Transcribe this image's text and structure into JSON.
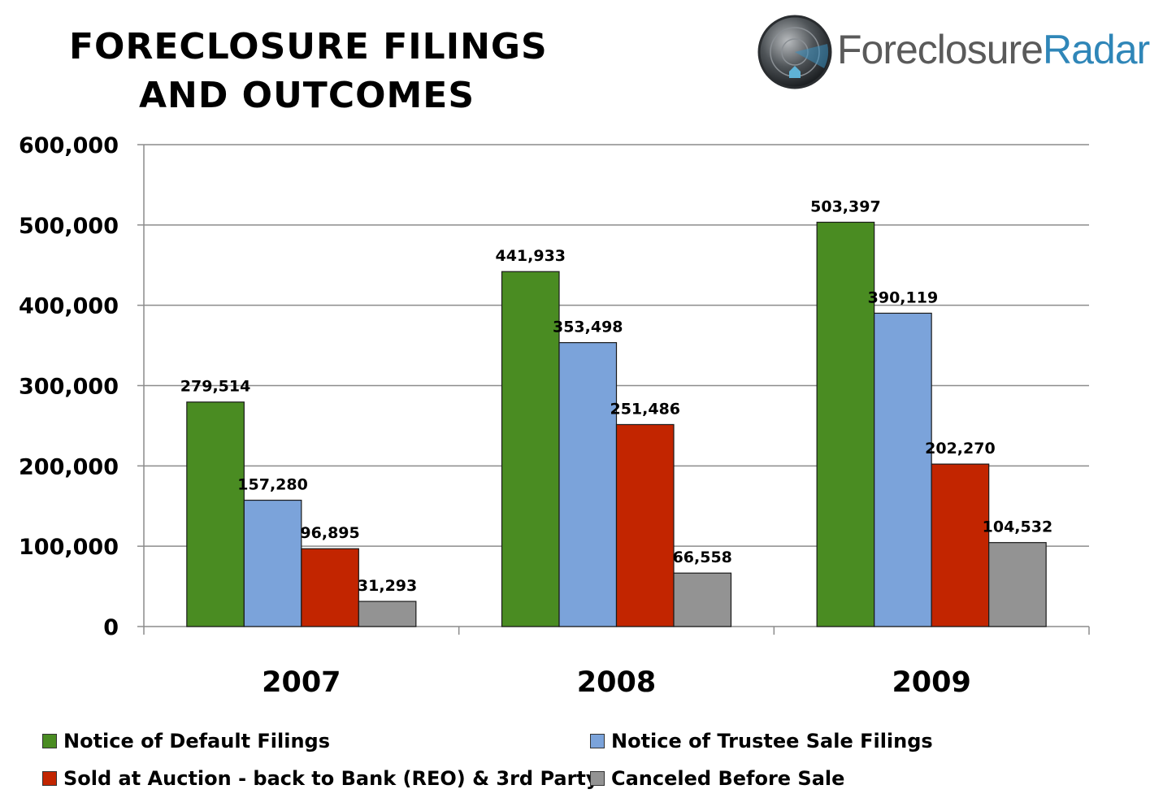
{
  "title": {
    "line1": "FORECLOSURE FILINGS",
    "line2": "AND OUTCOMES"
  },
  "logo": {
    "word1": "Foreclosure",
    "word2": "Radar",
    "tm": "™"
  },
  "chart_data": {
    "type": "bar",
    "categories": [
      "2007",
      "2008",
      "2009"
    ],
    "series": [
      {
        "name": "Notice of Default Filings",
        "color": "#4a8c22",
        "values": [
          279514,
          441933,
          503397
        ],
        "labels": [
          "279,514",
          "441,933",
          "503,397"
        ]
      },
      {
        "name": "Notice of Trustee Sale Filings",
        "color": "#7ba3da",
        "values": [
          157280,
          353498,
          390119
        ],
        "labels": [
          "157,280",
          "353,498",
          "390,119"
        ]
      },
      {
        "name": "Sold at Auction - back to Bank (REO) & 3rd Party",
        "color": "#c22500",
        "values": [
          96895,
          251486,
          202270
        ],
        "labels": [
          "96,895",
          "251,486",
          "202,270"
        ]
      },
      {
        "name": "Canceled Before Sale",
        "color": "#939393",
        "values": [
          31293,
          66558,
          104532
        ],
        "labels": [
          "31,293",
          "66,558",
          "104,532"
        ]
      }
    ],
    "ylim": [
      0,
      600000
    ],
    "yticks": [
      0,
      100000,
      200000,
      300000,
      400000,
      500000,
      600000
    ],
    "ytick_labels": [
      "0",
      "100,000",
      "200,000",
      "300,000",
      "400,000",
      "500,000",
      "600,000"
    ],
    "grid": true,
    "legend_position": "bottom"
  }
}
